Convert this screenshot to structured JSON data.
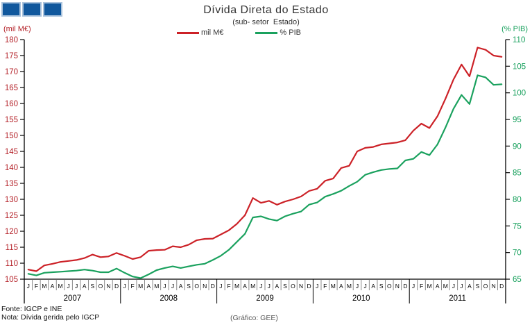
{
  "logo": {
    "square_count": 3,
    "fill_color": "#11589d",
    "border_color": "#a9c2dc"
  },
  "header": {
    "title": "Dívida Direta do Estado",
    "subtitle": "(sub- setor  Estado)"
  },
  "legend": {
    "items": [
      {
        "label": "mil M€",
        "color": "#cc2127"
      },
      {
        "label": "% PIB",
        "color": "#1aa15e"
      }
    ]
  },
  "footer": {
    "fonte": "Fonte: IGCP e INE",
    "nota": "Nota: Dívida gerida pelo IGCP",
    "credit": "(Gráfico: GEE)"
  },
  "chart_data": {
    "type": "line",
    "title": "Dívida Direta do Estado",
    "subtitle": "(sub- setor  Estado)",
    "x_years": [
      "2007",
      "2008",
      "2009",
      "2010",
      "2011"
    ],
    "month_letters": [
      "J",
      "F",
      "M",
      "A",
      "M",
      "J",
      "J",
      "A",
      "S",
      "O",
      "N",
      "D"
    ],
    "grid": false,
    "legend_position": "top-center",
    "left_axis": {
      "label": "(mil M€)",
      "color": "#b5232a",
      "min": 105,
      "max": 180,
      "step": 5
    },
    "right_axis": {
      "label": "(% PIB)",
      "color": "#1aa15e",
      "min": 65,
      "max": 110,
      "step": 5
    },
    "series": [
      {
        "name": "mil M€",
        "axis": "left",
        "color": "#cc2127",
        "values": [
          108.0,
          107.5,
          109.3,
          109.8,
          110.4,
          110.7,
          111.0,
          111.6,
          112.7,
          111.9,
          112.1,
          113.2,
          112.3,
          111.3,
          111.9,
          113.9,
          114.1,
          114.2,
          115.3,
          115.0,
          115.8,
          117.2,
          117.6,
          117.7,
          119.0,
          120.3,
          122.3,
          125.0,
          130.4,
          128.9,
          129.5,
          128.3,
          129.3,
          130.0,
          130.9,
          132.6,
          133.3,
          135.8,
          136.5,
          139.8,
          140.5,
          145.0,
          146.1,
          146.4,
          147.2,
          147.5,
          147.8,
          148.5,
          151.5,
          153.7,
          152.3,
          156.0,
          161.5,
          167.5,
          172.2,
          168.5,
          177.5,
          176.8,
          175.0,
          174.6
        ]
      },
      {
        "name": "% PIB",
        "axis": "right",
        "color": "#1aa15e",
        "values": [
          66.0,
          65.7,
          66.2,
          66.3,
          66.4,
          66.5,
          66.6,
          66.8,
          66.6,
          66.3,
          66.3,
          67.0,
          66.2,
          65.5,
          65.2,
          65.9,
          66.7,
          67.1,
          67.4,
          67.1,
          67.4,
          67.7,
          67.9,
          68.6,
          69.4,
          70.5,
          72.0,
          73.5,
          76.6,
          76.8,
          76.3,
          76.0,
          76.8,
          77.3,
          77.7,
          79.0,
          79.4,
          80.5,
          81.0,
          81.6,
          82.5,
          83.3,
          84.6,
          85.1,
          85.5,
          85.7,
          85.8,
          87.3,
          87.6,
          88.9,
          88.3,
          90.3,
          93.5,
          97.0,
          99.6,
          97.9,
          103.3,
          102.9,
          101.5,
          101.6
        ]
      }
    ]
  }
}
